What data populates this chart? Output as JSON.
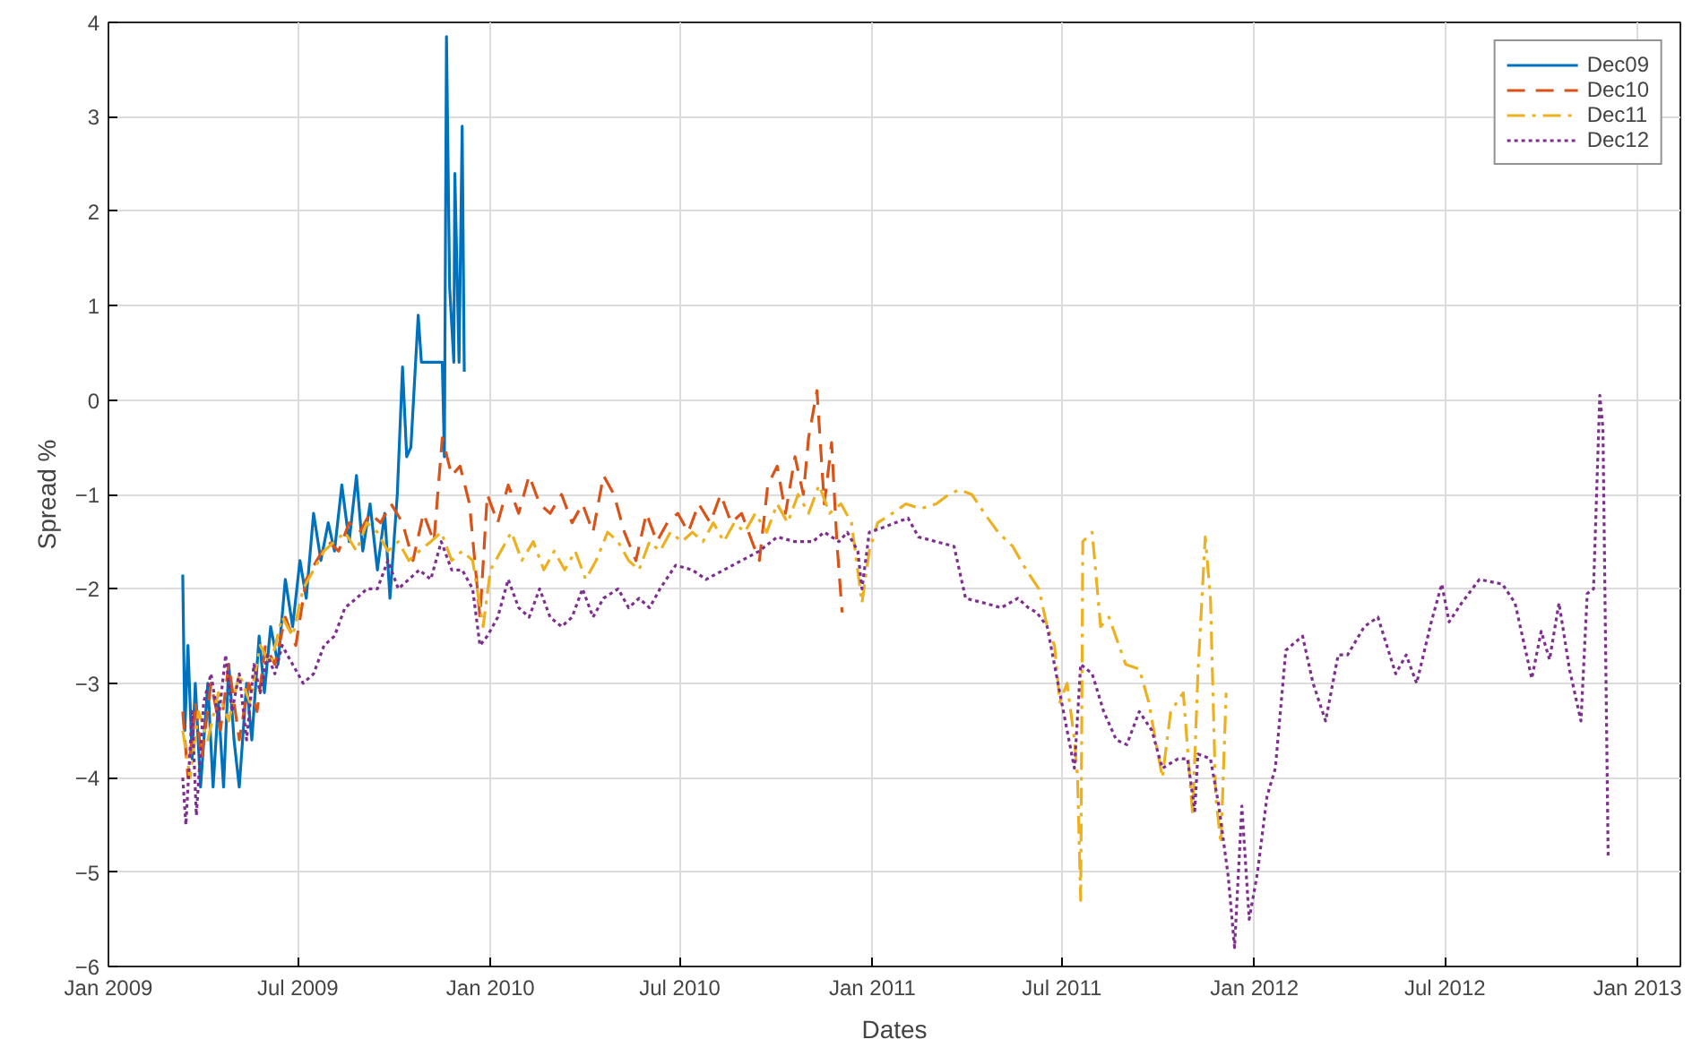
{
  "chart_data": {
    "type": "line",
    "xlabel": "Dates",
    "ylabel": "Spread %",
    "xlim": [
      "2009-01-01",
      "2013-02-11"
    ],
    "ylim": [
      -6,
      4
    ],
    "xticks": [
      {
        "value": "2009-01",
        "label": "Jan 2009"
      },
      {
        "value": "2009-07",
        "label": "Jul 2009"
      },
      {
        "value": "2010-01",
        "label": "Jan 2010"
      },
      {
        "value": "2010-07",
        "label": "Jul 2010"
      },
      {
        "value": "2011-01",
        "label": "Jan 2011"
      },
      {
        "value": "2011-07",
        "label": "Jul 2011"
      },
      {
        "value": "2012-01",
        "label": "Jan 2012"
      },
      {
        "value": "2012-07",
        "label": "Jul 2012"
      },
      {
        "value": "2013-01",
        "label": "Jan 2013"
      }
    ],
    "yticks": [
      -6,
      -5,
      -4,
      -3,
      -2,
      -1,
      0,
      1,
      2,
      3,
      4
    ],
    "grid": true,
    "legend": "top right",
    "series": [
      {
        "name": "Dec09",
        "color": "#0072bd",
        "line_style": "solid",
        "x": [
          "2009-03-13",
          "2009-03-15",
          "2009-03-18",
          "2009-03-22",
          "2009-03-25",
          "2009-03-30",
          "2009-04-06",
          "2009-04-11",
          "2009-04-16",
          "2009-04-21",
          "2009-04-26",
          "2009-05-01",
          "2009-05-06",
          "2009-05-13",
          "2009-05-18",
          "2009-05-25",
          "2009-05-30",
          "2009-06-05",
          "2009-06-12",
          "2009-06-19",
          "2009-06-26",
          "2009-07-03",
          "2009-07-09",
          "2009-07-16",
          "2009-07-23",
          "2009-07-30",
          "2009-08-05",
          "2009-08-12",
          "2009-08-19",
          "2009-08-26",
          "2009-09-01",
          "2009-09-08",
          "2009-09-15",
          "2009-09-22",
          "2009-09-27",
          "2009-10-04",
          "2009-10-09",
          "2009-10-13",
          "2009-10-17",
          "2009-10-24",
          "2009-10-27",
          "2009-11-16",
          "2009-11-18",
          "2009-11-20",
          "2009-11-23",
          "2009-11-27",
          "2009-11-28",
          "2009-12-02",
          "2009-12-05",
          "2009-12-07"
        ],
        "values": [
          -1.85,
          -3.5,
          -2.6,
          -3.8,
          -3.0,
          -4.1,
          -3.0,
          -4.1,
          -3.2,
          -4.1,
          -2.8,
          -3.6,
          -4.1,
          -3.0,
          -3.6,
          -2.5,
          -3.1,
          -2.4,
          -2.8,
          -1.9,
          -2.4,
          -1.7,
          -2.1,
          -1.2,
          -1.7,
          -1.3,
          -1.6,
          -0.9,
          -1.5,
          -0.8,
          -1.6,
          -1.1,
          -1.8,
          -1.2,
          -2.1,
          -1.0,
          0.35,
          -0.6,
          -0.5,
          0.9,
          0.4,
          0.4,
          -0.6,
          3.85,
          1.2,
          0.4,
          2.4,
          0.4,
          2.9,
          0.3
        ]
      },
      {
        "name": "Dec10",
        "color": "#d95319",
        "line_style": "dashed",
        "x": [
          "2009-03-13",
          "2009-03-18",
          "2009-03-25",
          "2009-03-31",
          "2009-04-09",
          "2009-04-18",
          "2009-04-26",
          "2009-05-06",
          "2009-05-15",
          "2009-05-23",
          "2009-05-31",
          "2009-06-09",
          "2009-06-19",
          "2009-06-29",
          "2009-07-09",
          "2009-07-19",
          "2009-07-30",
          "2009-08-09",
          "2009-08-19",
          "2009-08-29",
          "2009-09-08",
          "2009-09-18",
          "2009-09-28",
          "2009-10-09",
          "2009-10-19",
          "2009-10-29",
          "2009-11-08",
          "2009-11-16",
          "2009-11-25",
          "2009-12-03",
          "2009-12-12",
          "2009-12-22",
          "2009-12-29",
          "2010-01-08",
          "2010-01-18",
          "2010-01-28",
          "2010-02-07",
          "2010-02-17",
          "2010-02-27",
          "2010-03-10",
          "2010-03-20",
          "2010-03-30",
          "2010-04-09",
          "2010-04-19",
          "2010-04-29",
          "2010-05-09",
          "2010-05-20",
          "2010-05-30",
          "2010-06-09",
          "2010-06-19",
          "2010-06-29",
          "2010-07-09",
          "2010-07-19",
          "2010-07-30",
          "2010-08-09",
          "2010-08-19",
          "2010-08-29",
          "2010-09-08",
          "2010-09-15",
          "2010-09-23",
          "2010-10-02",
          "2010-10-10",
          "2010-10-19",
          "2010-10-27",
          "2010-11-01",
          "2010-11-09",
          "2010-11-16",
          "2010-11-23",
          "2010-11-28",
          "2010-12-03"
        ],
        "values": [
          -3.3,
          -4.0,
          -3.2,
          -3.8,
          -3.0,
          -3.5,
          -2.8,
          -3.6,
          -3.0,
          -3.3,
          -2.6,
          -2.8,
          -2.3,
          -2.6,
          -1.9,
          -1.7,
          -1.5,
          -1.6,
          -1.3,
          -1.4,
          -1.2,
          -1.3,
          -1.1,
          -1.3,
          -1.7,
          -1.2,
          -1.5,
          -0.4,
          -0.8,
          -0.7,
          -1.1,
          -2.3,
          -1.0,
          -1.3,
          -0.9,
          -1.2,
          -0.8,
          -1.1,
          -1.2,
          -1.0,
          -1.3,
          -1.1,
          -1.4,
          -0.8,
          -1.0,
          -1.4,
          -1.7,
          -1.2,
          -1.5,
          -1.3,
          -1.2,
          -1.4,
          -1.1,
          -1.3,
          -1.0,
          -1.3,
          -1.2,
          -1.5,
          -1.7,
          -0.9,
          -0.7,
          -1.2,
          -0.6,
          -1.0,
          -0.4,
          0.1,
          -1.1,
          -0.45,
          -1.5,
          -2.25
        ]
      },
      {
        "name": "Dec11",
        "color": "#edb120",
        "line_style": "dashdot",
        "x": [
          "2009-03-13",
          "2009-03-20",
          "2009-03-28",
          "2009-04-06",
          "2009-04-16",
          "2009-04-26",
          "2009-05-06",
          "2009-05-16",
          "2009-05-26",
          "2009-06-05",
          "2009-06-16",
          "2009-06-26",
          "2009-07-06",
          "2009-07-16",
          "2009-07-26",
          "2009-08-05",
          "2009-08-15",
          "2009-08-26",
          "2009-09-05",
          "2009-09-15",
          "2009-09-25",
          "2009-10-05",
          "2009-10-15",
          "2009-10-25",
          "2009-11-05",
          "2009-11-15",
          "2009-11-25",
          "2009-12-05",
          "2009-12-15",
          "2009-12-25",
          "2010-01-01",
          "2010-01-11",
          "2010-01-21",
          "2010-01-31",
          "2010-02-11",
          "2010-02-21",
          "2010-03-03",
          "2010-03-13",
          "2010-03-23",
          "2010-04-02",
          "2010-04-12",
          "2010-04-23",
          "2010-05-03",
          "2010-05-13",
          "2010-05-23",
          "2010-06-02",
          "2010-06-12",
          "2010-06-22",
          "2010-07-03",
          "2010-07-13",
          "2010-07-23",
          "2010-08-02",
          "2010-08-12",
          "2010-08-22",
          "2010-09-01",
          "2010-09-11",
          "2010-09-22",
          "2010-10-02",
          "2010-10-12",
          "2010-10-22",
          "2010-11-01",
          "2010-11-11",
          "2010-11-21",
          "2010-12-02",
          "2010-12-12",
          "2010-12-22",
          "2010-12-29",
          "2011-01-06",
          "2011-01-20",
          "2011-02-02",
          "2011-02-16",
          "2011-03-03",
          "2011-03-15",
          "2011-03-25",
          "2011-04-06",
          "2011-04-18",
          "2011-05-01",
          "2011-05-15",
          "2011-05-28",
          "2011-06-09",
          "2011-06-17",
          "2011-06-24",
          "2011-06-29",
          "2011-07-06",
          "2011-07-13",
          "2011-07-16",
          "2011-07-19",
          "2011-07-21",
          "2011-07-30",
          "2011-08-07",
          "2011-08-15",
          "2011-08-31",
          "2011-09-13",
          "2011-09-22",
          "2011-10-05",
          "2011-10-13",
          "2011-10-25",
          "2011-11-03",
          "2011-11-08",
          "2011-11-15",
          "2011-11-20",
          "2011-11-25",
          "2011-11-30",
          "2011-12-05"
        ],
        "values": [
          -3.5,
          -4.0,
          -3.3,
          -3.6,
          -3.1,
          -3.4,
          -2.9,
          -3.2,
          -2.6,
          -2.8,
          -2.3,
          -2.5,
          -2.0,
          -1.8,
          -1.6,
          -1.5,
          -1.4,
          -1.6,
          -1.3,
          -1.4,
          -1.6,
          -1.5,
          -1.7,
          -1.6,
          -1.5,
          -1.4,
          -1.7,
          -1.6,
          -1.7,
          -2.4,
          -1.8,
          -1.6,
          -1.4,
          -1.7,
          -1.5,
          -1.8,
          -1.6,
          -1.8,
          -1.6,
          -1.9,
          -1.7,
          -1.4,
          -1.5,
          -1.7,
          -1.8,
          -1.5,
          -1.6,
          -1.4,
          -1.5,
          -1.4,
          -1.5,
          -1.3,
          -1.5,
          -1.3,
          -1.4,
          -1.2,
          -1.4,
          -1.1,
          -1.3,
          -1.0,
          -1.2,
          -0.9,
          -1.2,
          -1.1,
          -1.3,
          -2.15,
          -1.6,
          -1.3,
          -1.2,
          -1.1,
          -1.15,
          -1.1,
          -1.0,
          -0.95,
          -1.0,
          -1.2,
          -1.4,
          -1.55,
          -1.8,
          -2.0,
          -2.4,
          -2.6,
          -3.2,
          -3.0,
          -3.6,
          -4.0,
          -5.3,
          -1.5,
          -1.4,
          -2.4,
          -2.3,
          -2.8,
          -2.85,
          -3.2,
          -4.0,
          -3.3,
          -3.1,
          -4.4,
          -2.9,
          -1.45,
          -2.1,
          -4.2,
          -4.7,
          -3.1
        ]
      },
      {
        "name": "Dec12",
        "color": "#7e2f8e",
        "line_style": "dotted",
        "x": [
          "2009-03-13",
          "2009-03-16",
          "2009-03-22",
          "2009-03-26",
          "2009-04-02",
          "2009-04-09",
          "2009-04-16",
          "2009-04-23",
          "2009-04-29",
          "2009-05-06",
          "2009-05-13",
          "2009-05-20",
          "2009-05-26",
          "2009-06-02",
          "2009-06-09",
          "2009-06-16",
          "2009-06-26",
          "2009-07-06",
          "2009-07-16",
          "2009-07-26",
          "2009-08-05",
          "2009-08-15",
          "2009-08-26",
          "2009-09-05",
          "2009-09-15",
          "2009-09-25",
          "2009-10-05",
          "2009-10-15",
          "2009-10-25",
          "2009-11-05",
          "2009-11-15",
          "2009-11-25",
          "2009-12-05",
          "2009-12-15",
          "2009-12-22",
          "2009-12-29",
          "2010-01-08",
          "2010-01-18",
          "2010-01-28",
          "2010-02-07",
          "2010-02-17",
          "2010-02-27",
          "2010-03-10",
          "2010-03-20",
          "2010-03-30",
          "2010-04-09",
          "2010-04-19",
          "2010-05-03",
          "2010-05-13",
          "2010-05-23",
          "2010-06-02",
          "2010-06-12",
          "2010-06-27",
          "2010-07-13",
          "2010-07-26",
          "2010-08-12",
          "2010-08-29",
          "2010-09-15",
          "2010-10-02",
          "2010-10-19",
          "2010-11-05",
          "2010-11-16",
          "2010-11-30",
          "2010-12-08",
          "2010-12-18",
          "2010-12-22",
          "2010-12-29",
          "2011-01-11",
          "2011-01-23",
          "2011-02-04",
          "2011-02-14",
          "2011-03-03",
          "2011-03-20",
          "2011-03-31",
          "2011-04-18",
          "2011-05-04",
          "2011-05-20",
          "2011-05-30",
          "2011-06-07",
          "2011-06-17",
          "2011-06-29",
          "2011-07-13",
          "2011-07-19",
          "2011-07-30",
          "2011-08-10",
          "2011-08-22",
          "2011-09-01",
          "2011-09-13",
          "2011-09-25",
          "2011-10-05",
          "2011-10-20",
          "2011-10-29",
          "2011-11-05",
          "2011-11-08",
          "2011-11-20",
          "2011-11-28",
          "2011-12-07",
          "2011-12-13",
          "2011-12-20",
          "2011-12-27",
          "2012-01-04",
          "2012-01-13",
          "2012-01-21",
          "2012-01-31",
          "2012-02-16",
          "2012-02-26",
          "2012-03-09",
          "2012-03-21",
          "2012-03-30",
          "2012-04-15",
          "2012-04-28",
          "2012-05-15",
          "2012-05-25",
          "2012-06-04",
          "2012-06-18",
          "2012-06-28",
          "2012-07-05",
          "2012-07-17",
          "2012-08-03",
          "2012-08-25",
          "2012-09-06",
          "2012-09-22",
          "2012-10-01",
          "2012-10-09",
          "2012-10-18",
          "2012-10-28",
          "2012-11-08",
          "2012-11-14",
          "2012-11-20",
          "2012-11-26",
          "2012-11-29",
          "2012-12-04"
        ],
        "values": [
          -4.0,
          -4.5,
          -3.3,
          -4.4,
          -3.2,
          -2.9,
          -3.4,
          -2.7,
          -3.3,
          -2.9,
          -3.6,
          -2.8,
          -3.1,
          -2.7,
          -2.9,
          -2.6,
          -2.8,
          -3.0,
          -2.9,
          -2.6,
          -2.5,
          -2.2,
          -2.1,
          -2.0,
          -2.0,
          -1.7,
          -2.0,
          -1.9,
          -1.8,
          -1.9,
          -1.5,
          -1.8,
          -1.8,
          -2.0,
          -2.6,
          -2.5,
          -2.3,
          -1.9,
          -2.2,
          -2.3,
          -2.0,
          -2.3,
          -2.4,
          -2.3,
          -2.0,
          -2.3,
          -2.1,
          -2.0,
          -2.2,
          -2.1,
          -2.2,
          -2.0,
          -1.75,
          -1.8,
          -1.9,
          -1.8,
          -1.7,
          -1.6,
          -1.45,
          -1.5,
          -1.5,
          -1.4,
          -1.5,
          -1.4,
          -1.6,
          -2.0,
          -1.4,
          -1.35,
          -1.3,
          -1.25,
          -1.45,
          -1.5,
          -1.55,
          -2.1,
          -2.15,
          -2.2,
          -2.1,
          -2.2,
          -2.25,
          -2.4,
          -3.1,
          -3.9,
          -2.8,
          -2.9,
          -3.3,
          -3.6,
          -3.65,
          -3.3,
          -3.5,
          -3.9,
          -3.8,
          -3.8,
          -4.35,
          -3.75,
          -3.8,
          -4.3,
          -5.05,
          -5.8,
          -4.3,
          -5.5,
          -5.0,
          -4.2,
          -3.9,
          -2.65,
          -2.5,
          -3.0,
          -3.4,
          -2.7,
          -2.7,
          -2.4,
          -2.3,
          -2.9,
          -2.7,
          -3.0,
          -2.35,
          -1.95,
          -2.35,
          -2.15,
          -1.9,
          -1.95,
          -2.15,
          -2.95,
          -2.45,
          -2.75,
          -2.15,
          -2.85,
          -3.4,
          -2.05,
          -2.0,
          0.05,
          -0.3,
          -4.85
        ]
      }
    ]
  }
}
